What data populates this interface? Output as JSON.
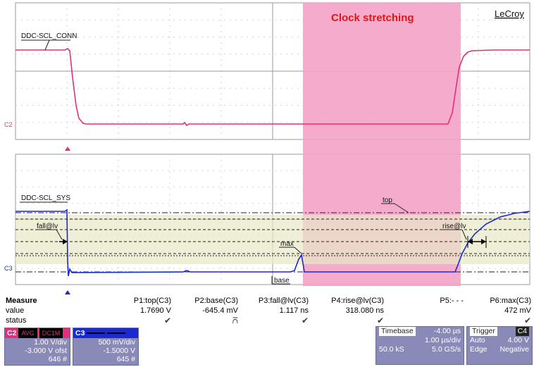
{
  "overlay_title": "Clock stretching",
  "brand": "LeCroy",
  "traces": {
    "upper": {
      "name": "DDC-SCL_CONN",
      "channel": "C2",
      "color": "#e0307a"
    },
    "lower": {
      "name": "DDC-SCL_SYS",
      "channel": "C3",
      "color": "#1a2ad0"
    }
  },
  "annotations": {
    "top": "top",
    "max": "max",
    "base": "base",
    "fall": "fall@lv",
    "rise": "rise@lv"
  },
  "measure": {
    "row_labels": [
      "Measure",
      "value",
      "status"
    ],
    "columns": [
      {
        "header": "P1:top(C3)",
        "value": "1.7690 V",
        "status": "✔"
      },
      {
        "header": "P2:base(C3)",
        "value": "-645.4 mV",
        "status": "⩃"
      },
      {
        "header": "P3:fall@lv(C3)",
        "value": "1.117 ns",
        "status": "✔"
      },
      {
        "header": "P4:rise@lv(C3)",
        "value": "318.080 ns",
        "status": "✔"
      },
      {
        "header": "P5:- - -",
        "value": "",
        "status": ""
      },
      {
        "header": "P6:max(C3)",
        "value": "472 mV",
        "status": "✔"
      }
    ]
  },
  "channel_badges": [
    {
      "channel": "C2",
      "tags": [
        "AVG",
        "DC1M"
      ],
      "vdiv": "1.00 V/div",
      "offset": "-3.000 V ofst",
      "count": "646 #",
      "color": "#e0307a"
    },
    {
      "channel": "C3",
      "tags": [
        "",
        ""
      ],
      "vdiv": "500 mV/div",
      "offset": "-1.5000 V",
      "count": "645 #",
      "color": "#1a2ad0"
    }
  ],
  "timebase": {
    "label": "Timebase",
    "value": "-4.00 µs",
    "per_div": "1.00 µs/div",
    "samples": "50.0 kS",
    "rate": "5.0 GS/s"
  },
  "trigger": {
    "label": "Trigger",
    "source": "C4",
    "mode": "Auto",
    "level": "4.00 V",
    "type": "Edge",
    "slope": "Negative"
  }
}
